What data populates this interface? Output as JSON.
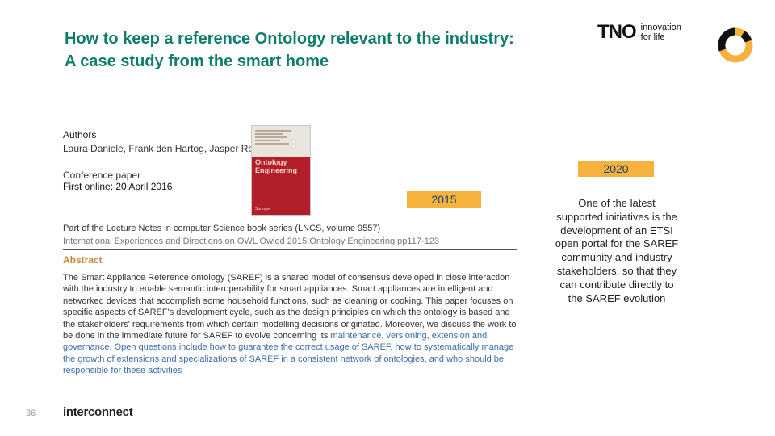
{
  "title": {
    "line1": "How to keep a reference Ontology relevant to the industry:",
    "line2": "A case study from the smart home"
  },
  "tno": {
    "word": "TNO",
    "tagline1": "innovation",
    "tagline2": "for life"
  },
  "paper": {
    "authors_heading": "Authors",
    "authors": "Laura Daniele, Frank den Hartog, Jasper Roes",
    "type": "Conference paper",
    "online": "First online: 20 April 2016",
    "series_line": "Part of the Lecture Notes in computer Science book series (LNCS, volume 9557)",
    "proceedings_line": "International Experiences and Directions on OWL Owled 2015:Ontology Engineering pp117-123"
  },
  "cover": {
    "title_line1": "Ontology",
    "title_line2": "Engineering",
    "publisher": "Springer"
  },
  "badges": {
    "year1": "2015",
    "year2": "2020"
  },
  "abstract": {
    "heading": "Abstract",
    "text_before": "The Smart Appliance Reference ontology (SAREF) is a shared model of consensus developed in close interaction with the industry to enable semantic interoperability for smart appliances. Smart appliances are intelligent and networked devices that accomplish some household functions, such as cleaning or cooking. This paper focuses on specific aspects of SAREF's development cycle, such as the design principles on which the ontology is based and the stakeholders' requirements from which certain modelling decisions originated. Moreover, we discuss the work to be done in the immediate future for SAREF to evolve concerning its ",
    "text_highlight": "maintenance, versioning, extension and governance. Open questions include how to guarantee the correct usage of SAREF, how to systematically manage the growth of extensions and specializations of SAREF in a consistent network of ontologies, and who should be responsible for these activities"
  },
  "side_note": "One of the latest supported initiatives is the development of an ETSI open portal for the SAREF community and industry stakeholders, so that they can contribute directly to the SAREF evolution",
  "footer": {
    "slide_number": "36",
    "logo_text": "interconnect"
  },
  "colors": {
    "title": "#0f7d6c",
    "badge": "#f6b33b",
    "abstract_heading": "#c2883a",
    "link": "#3b6ea8",
    "cover": "#b21f2a"
  },
  "icons": [
    "tno-logo",
    "ring-logo-icon",
    "interconnect-logo"
  ]
}
